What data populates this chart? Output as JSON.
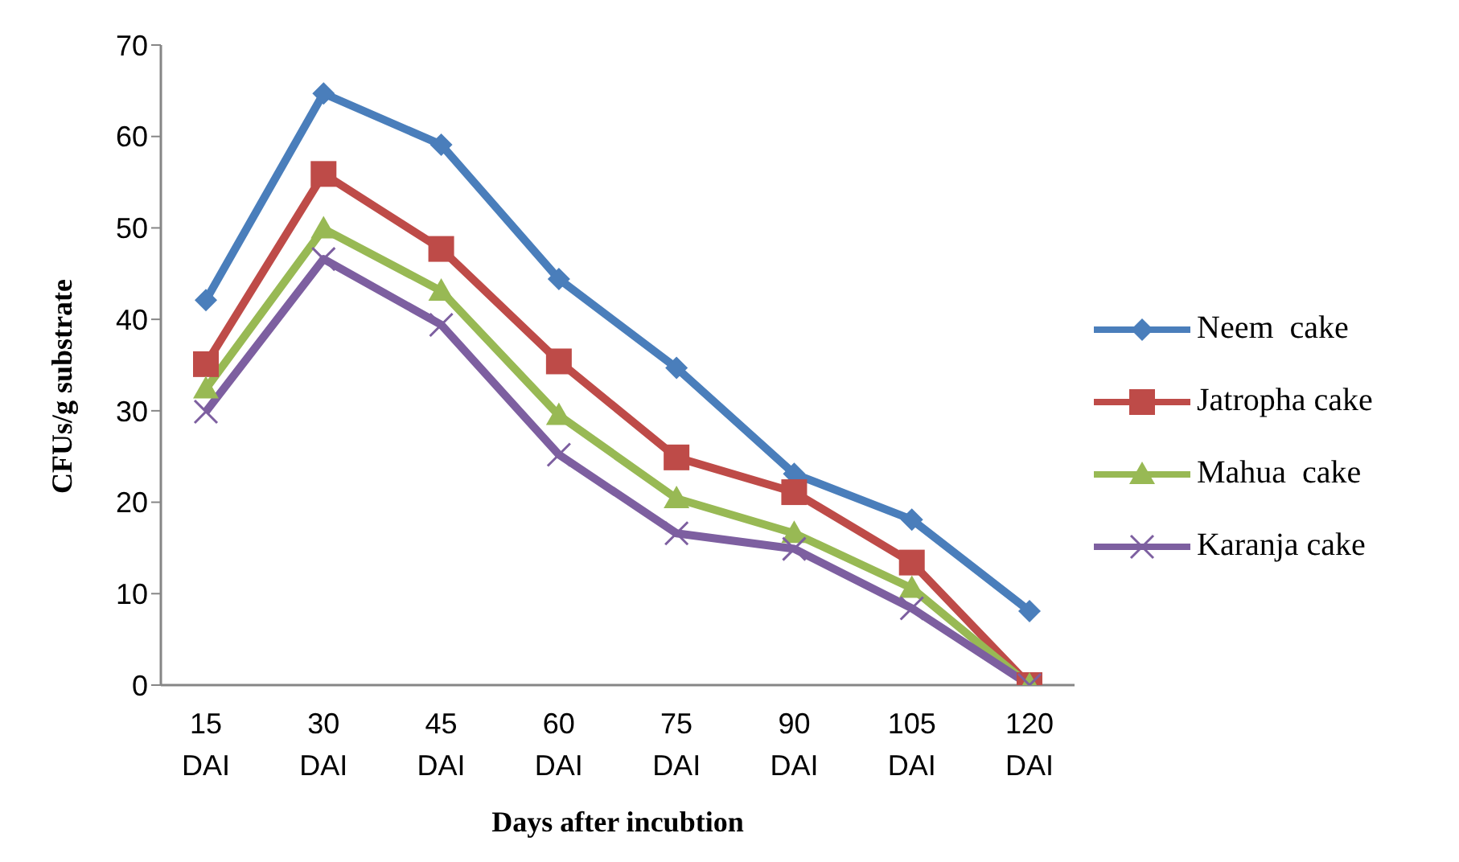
{
  "chart_data": {
    "type": "line",
    "xlabel": "Days after incubtion",
    "ylabel": "CFUs/g substrate",
    "categories": [
      "15 DAI",
      "30 DAI",
      "45 DAI",
      "60 DAI",
      "75 DAI",
      "90 DAI",
      "105 DAI",
      "120 DAI"
    ],
    "series": [
      {
        "name": "Neem  cake",
        "color": "#4a7ebb",
        "marker": "diamond",
        "values": [
          42.1,
          64.7,
          59.1,
          44.4,
          34.7,
          23.1,
          18.1,
          8.1
        ]
      },
      {
        "name": "Jatropha cake",
        "color": "#be4b48",
        "marker": "square",
        "values": [
          35.1,
          55.9,
          47.7,
          35.4,
          24.9,
          21.1,
          13.4,
          0
        ]
      },
      {
        "name": "Mahua  cake",
        "color": "#98b954",
        "marker": "triangle",
        "values": [
          32.4,
          49.9,
          43.1,
          29.5,
          20.4,
          16.6,
          10.6,
          0
        ]
      },
      {
        "name": "Karanja cake",
        "color": "#7d5fa0",
        "marker": "cross",
        "values": [
          29.9,
          46.6,
          39.4,
          25.2,
          16.6,
          14.9,
          8.4,
          0
        ]
      }
    ],
    "ylim": [
      0,
      70
    ],
    "yticks": [
      0,
      10,
      20,
      30,
      40,
      50,
      60,
      70
    ],
    "grid": false,
    "legend": "right"
  }
}
